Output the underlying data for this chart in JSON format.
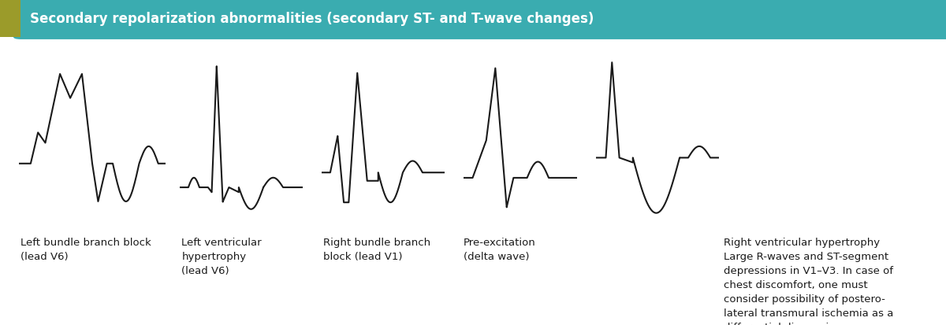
{
  "title": "Secondary repolarization abnormalities (secondary ST- and T-wave changes)",
  "title_bg": "#3aacb0",
  "title_left_bar": "#9b9b2a",
  "title_text_color": "#ffffff",
  "bg_color": "#ffffff",
  "ecg_color": "#1a1a1a",
  "labels": [
    "Left bundle branch block\n(lead V6)",
    "Left ventricular\nhypertrophy\n(lead V6)",
    "Right bundle branch\nblock (lead V1)",
    "Pre-excitation\n(delta wave)",
    "Right ventricular hypertrophy\nLarge R-waves and ST-segment\ndepressions in V1–V3. In case of\nchest discomfort, one must\nconsider possibility of postero-\nlateral transmural ischemia as a\ndifferential diagnosis."
  ],
  "label_fontsize": 9.5,
  "ecg_lw": 1.5
}
